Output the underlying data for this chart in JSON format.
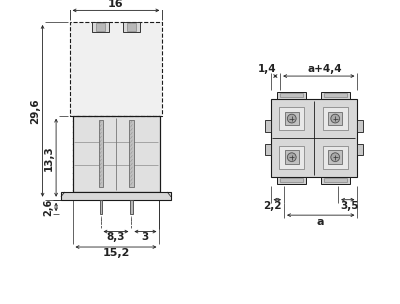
{
  "bg_color": "#ffffff",
  "line_color": "#1a1a1a",
  "dim_color": "#222222",
  "gray_fill": "#c8c8c8",
  "light_fill": "#e8e8e8",
  "mid_fill": "#b0b0b0",
  "dark_line": "#444444",
  "med_line": "#777777",
  "annotations": {
    "dim_16": "16",
    "dim_29_6": "29,6",
    "dim_13_3": "13,3",
    "dim_2_6": "2,6",
    "dim_8_3": "8,3",
    "dim_3": "3",
    "dim_15_2": "15,2",
    "dim_1_4": "1,4",
    "dim_a44": "a+4,4",
    "dim_2_2": "2,2",
    "dim_3_5": "3,5",
    "dim_a": "a"
  }
}
